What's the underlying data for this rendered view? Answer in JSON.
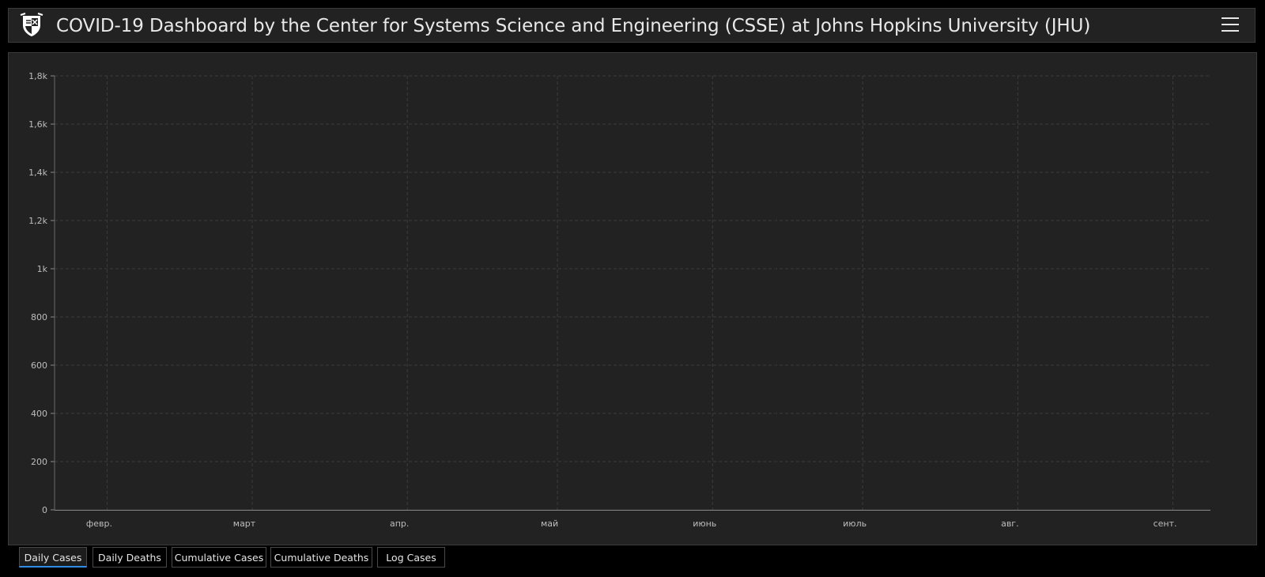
{
  "header": {
    "title": "COVID-19 Dashboard by the Center for Systems Science and Engineering (CSSE) at Johns Hopkins University (JHU)",
    "logo_icon": "university-shield-icon",
    "menu_icon": "hamburger-menu-icon"
  },
  "tabs": [
    {
      "label": "Daily Cases",
      "active": true
    },
    {
      "label": "Daily Deaths",
      "active": false
    },
    {
      "label": "Cumulative Cases",
      "active": false
    },
    {
      "label": "Cumulative Deaths",
      "active": false
    },
    {
      "label": "Log Cases",
      "active": false
    }
  ],
  "colors": {
    "bar": "#ffaa00",
    "panel": "#222222",
    "grid": "#3c3c3c",
    "tab_active_underline": "#2f8de4"
  },
  "chart_data": {
    "type": "bar",
    "title": "",
    "xlabel": "",
    "ylabel": "",
    "ylim": [
      0,
      1800
    ],
    "yticks": [
      0,
      200,
      400,
      600,
      800,
      1000,
      1200,
      1400,
      1600,
      1800
    ],
    "ytick_labels": [
      "0",
      "200",
      "400",
      "600",
      "800",
      "1k",
      "1,2k",
      "1,4k",
      "1,6k",
      "1,8k"
    ],
    "x_start": "2020-01-22",
    "x_end": "2020-09-08",
    "month_labels": [
      {
        "label": "февр.",
        "date": "2020-02-01"
      },
      {
        "label": "март",
        "date": "2020-03-01"
      },
      {
        "label": "апр.",
        "date": "2020-04-01"
      },
      {
        "label": "май",
        "date": "2020-05-01"
      },
      {
        "label": "июнь",
        "date": "2020-06-01"
      },
      {
        "label": "июль",
        "date": "2020-07-01"
      },
      {
        "label": "авг.",
        "date": "2020-08-01"
      },
      {
        "label": "сент.",
        "date": "2020-09-01"
      }
    ],
    "grid": true,
    "legend": "none",
    "values": [
      0,
      0,
      0,
      0,
      0,
      0,
      0,
      0,
      0,
      0,
      0,
      0,
      0,
      0,
      0,
      0,
      0,
      0,
      0,
      0,
      0,
      0,
      0,
      0,
      0,
      0,
      0,
      0,
      0,
      0,
      0,
      0,
      0,
      0,
      0,
      0,
      0,
      0,
      0,
      0,
      0,
      0,
      0,
      0,
      0,
      0,
      0,
      0,
      0,
      0,
      0,
      0,
      0,
      0,
      0,
      0,
      0,
      0,
      0,
      0,
      0,
      0,
      0,
      0,
      0,
      0,
      0,
      0,
      0,
      0,
      0,
      0,
      0,
      0,
      0,
      0,
      0,
      0,
      0,
      0,
      0,
      0,
      0,
      0,
      0,
      0,
      0,
      0,
      0,
      0,
      0,
      0,
      0,
      0,
      0,
      0,
      0,
      0,
      0,
      0,
      0,
      0,
      0,
      0,
      0,
      0,
      0,
      0,
      0,
      0,
      0,
      0,
      0,
      0,
      0,
      0,
      0,
      0,
      0,
      0,
      0,
      0,
      0,
      0,
      0,
      0,
      0,
      0,
      0,
      0,
      0,
      0,
      0,
      0,
      0,
      0,
      0,
      0,
      0,
      0,
      0,
      0,
      0,
      0,
      0,
      0,
      0,
      0,
      0,
      0,
      0,
      0,
      0,
      0,
      0,
      0,
      0,
      0,
      0,
      0,
      0,
      0,
      0,
      0,
      0,
      0,
      0,
      0,
      0,
      0,
      0,
      0,
      0,
      0,
      0,
      0,
      0,
      0,
      0,
      0,
      0,
      0,
      0,
      0,
      0,
      0,
      0,
      0,
      0,
      0,
      0,
      0,
      0,
      0,
      0,
      0,
      0,
      0,
      0,
      0,
      0,
      0,
      0,
      0,
      0,
      0,
      0,
      0,
      0,
      0,
      0,
      0,
      0,
      0,
      0,
      0,
      0,
      0,
      0,
      0,
      0,
      0,
      0,
      0,
      0,
      0,
      0,
      0,
      0,
      0,
      0,
      0,
      0,
      0,
      0,
      0,
      0,
      0,
      0,
      0
    ]
  }
}
